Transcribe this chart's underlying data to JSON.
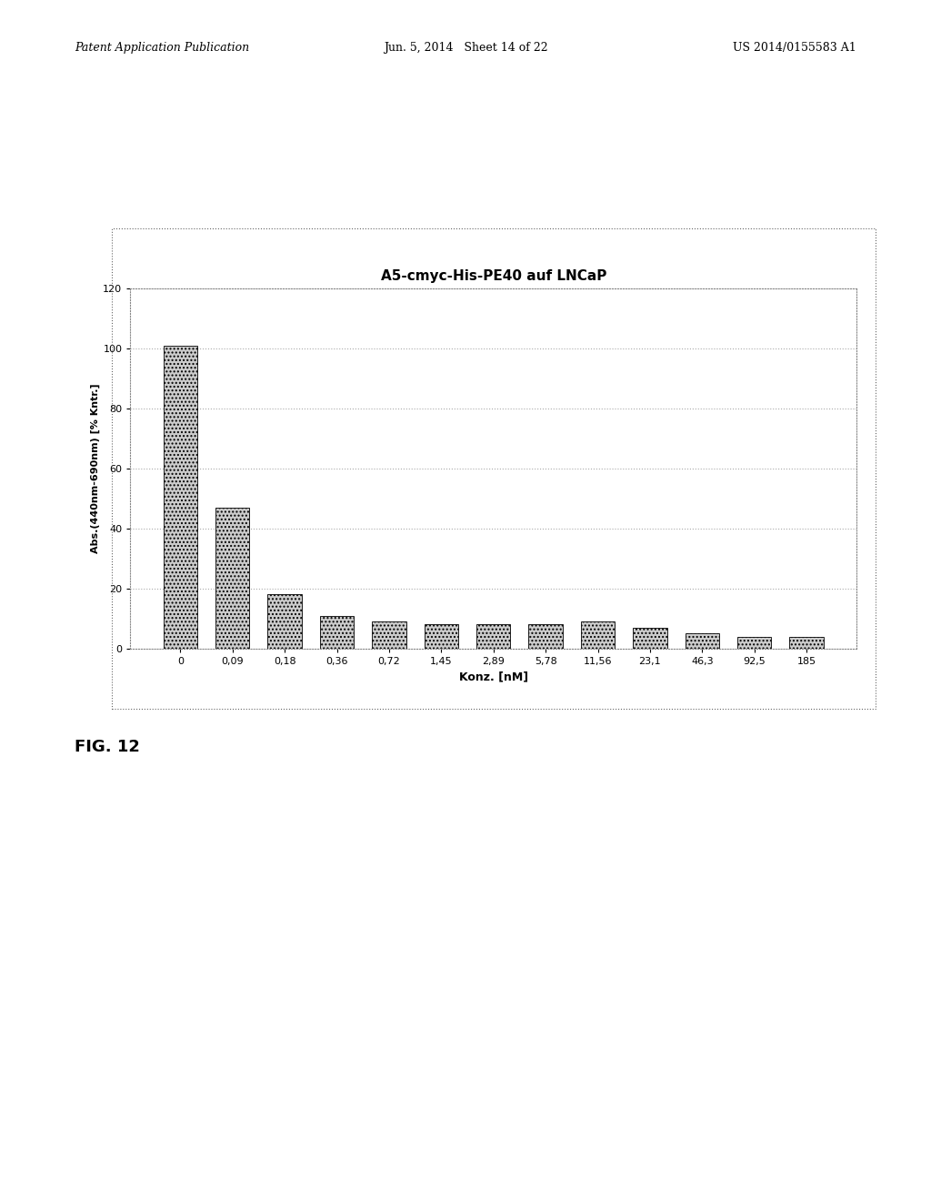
{
  "title": "A5-cmyc-His-PE40 auf LNCaP",
  "xlabel": "Konz. [nM]",
  "ylabel": "Abs.(440nm-690nm) [% Kntr.]",
  "categories": [
    "0",
    "0,09",
    "0,18",
    "0,36",
    "0,72",
    "1,45",
    "2,89",
    "5,78",
    "11,56",
    "23,1",
    "46,3",
    "92,5",
    "185"
  ],
  "values": [
    101,
    47,
    18,
    11,
    9,
    8,
    8,
    8,
    9,
    7,
    5,
    4,
    4
  ],
  "ylim": [
    0,
    120
  ],
  "yticks": [
    0,
    20,
    40,
    60,
    80,
    100,
    120
  ],
  "bar_color": "#cccccc",
  "bar_edge_color": "#000000",
  "background_color": "#ffffff",
  "chart_bg_color": "#ffffff",
  "grid_color": "#aaaaaa",
  "title_fontsize": 11,
  "label_fontsize": 9,
  "tick_fontsize": 8,
  "header_left": "Patent Application Publication",
  "header_center": "Jun. 5, 2014   Sheet 14 of 22",
  "header_right": "US 2014/0155583 A1",
  "fig_caption": "FIG. 12",
  "outer_box_color": "#888888"
}
